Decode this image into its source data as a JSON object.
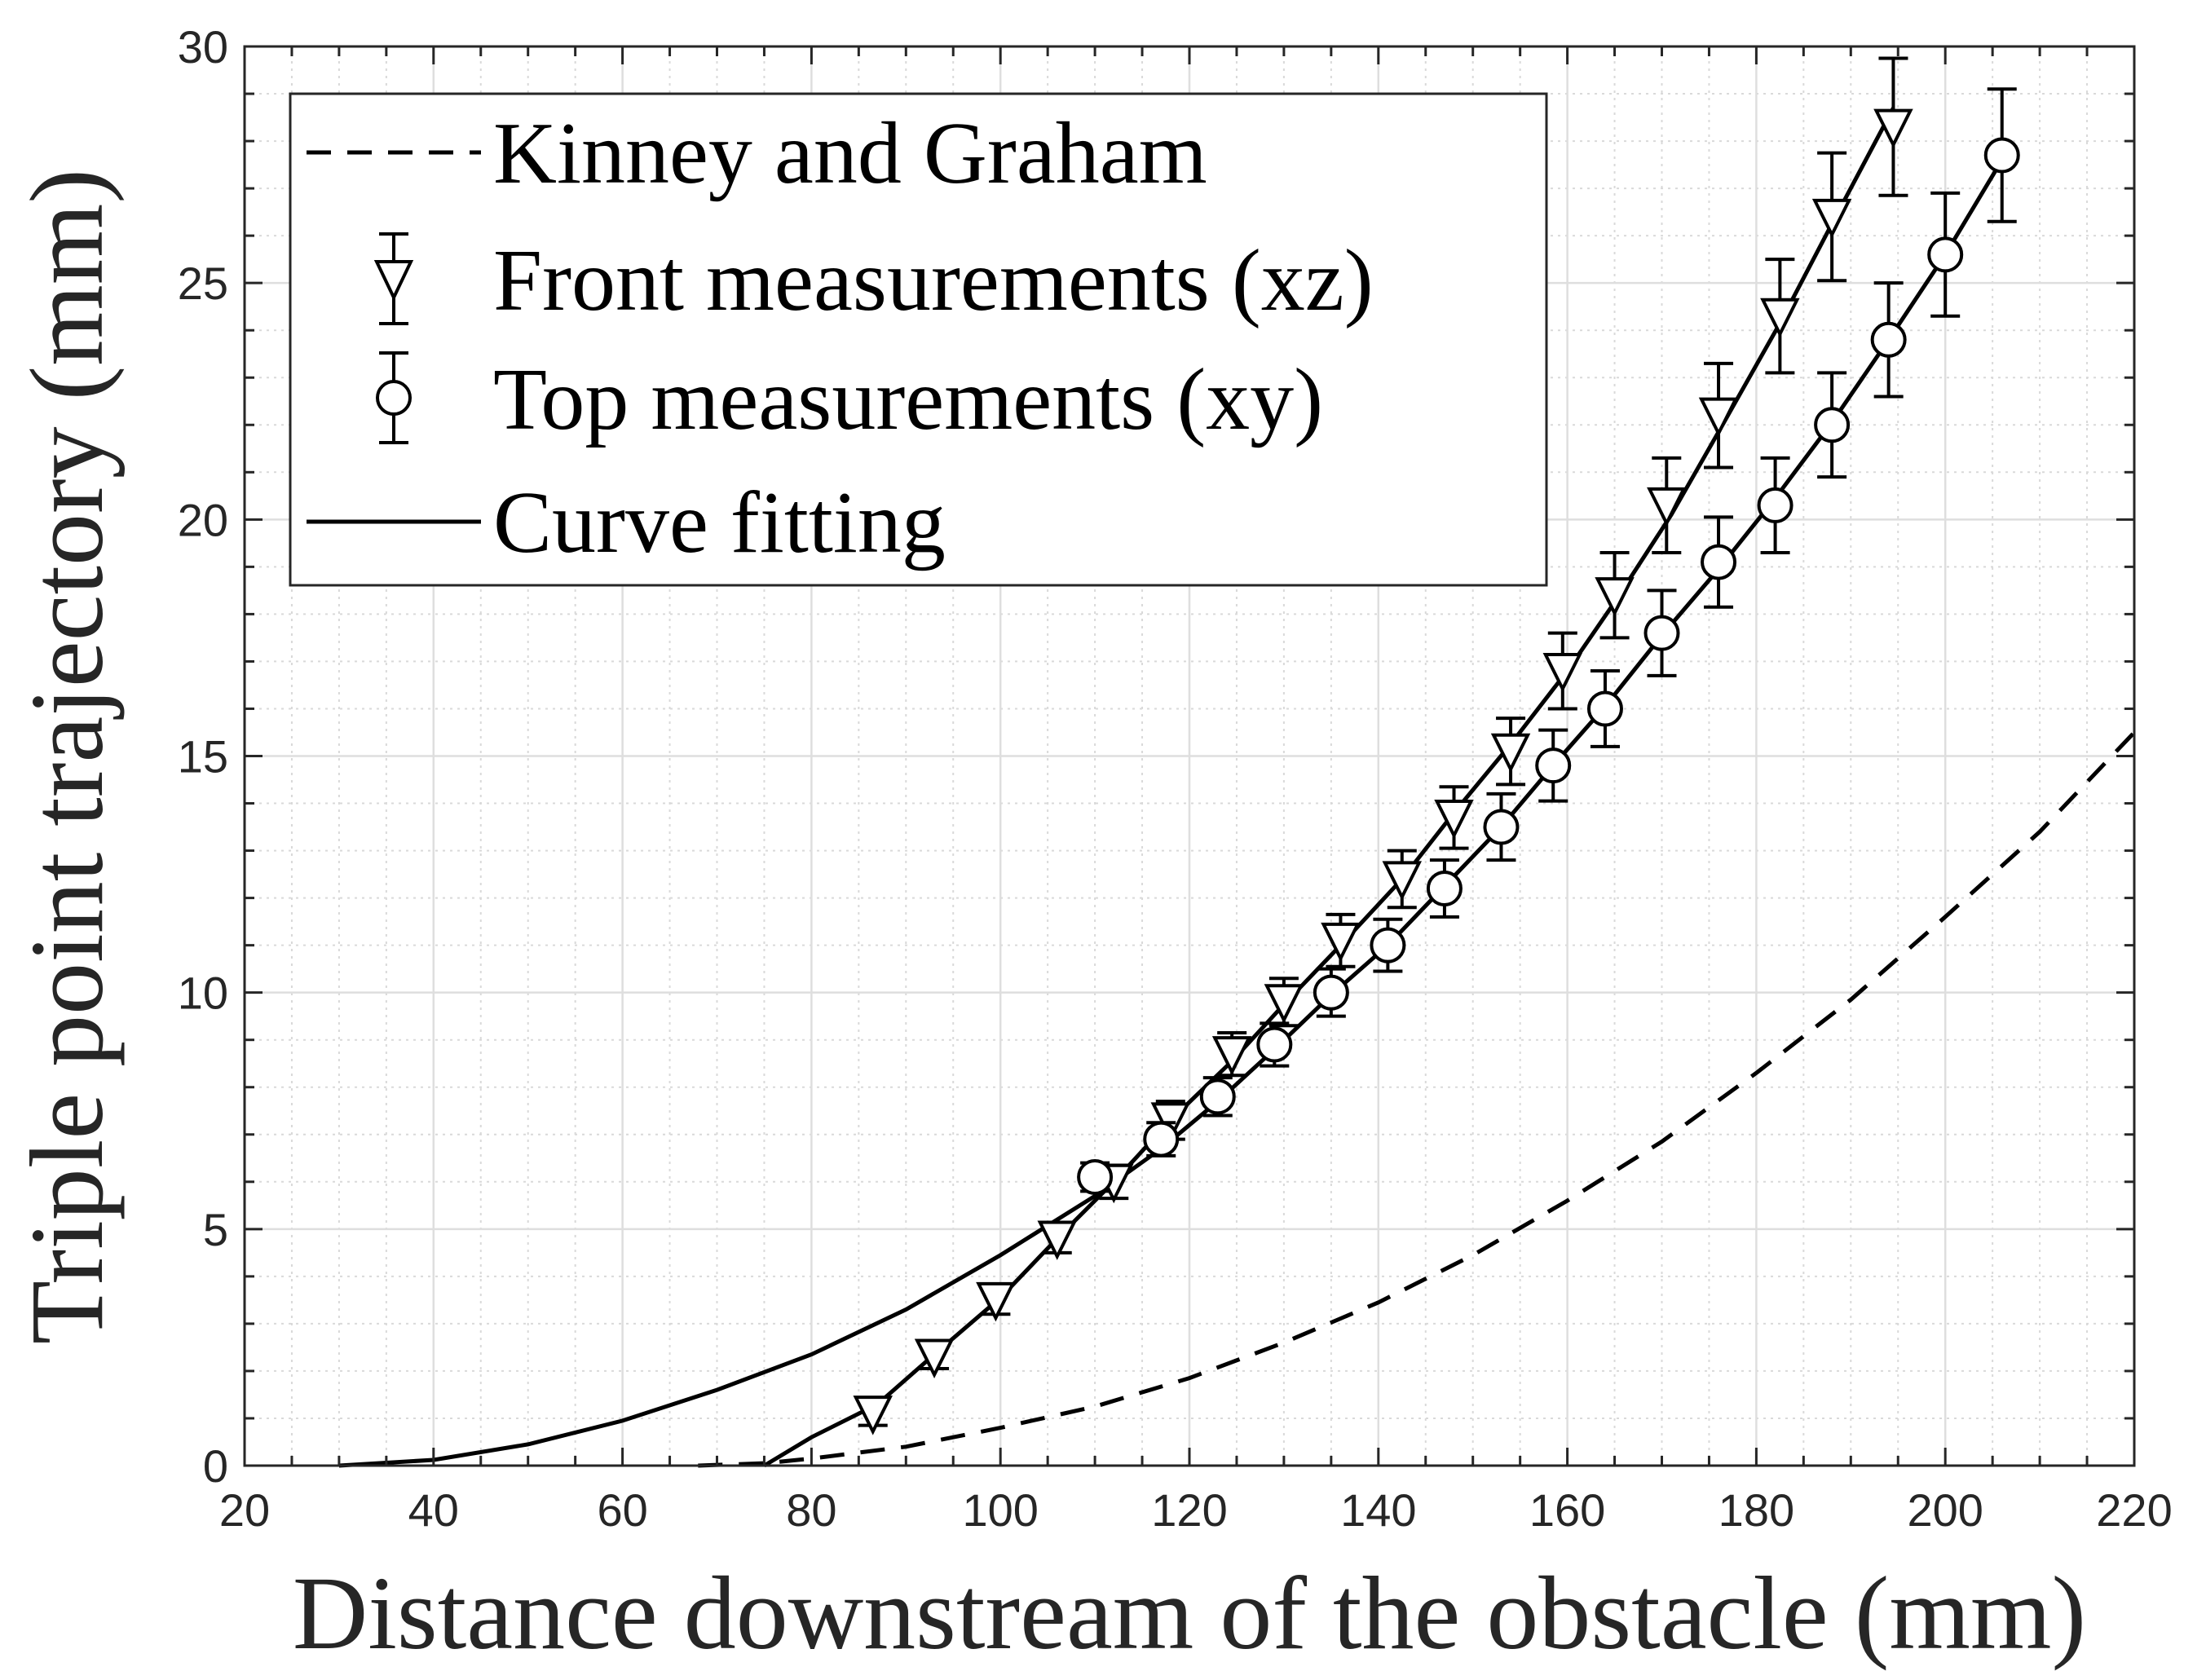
{
  "chart_data": {
    "type": "scatter",
    "xlabel": "Distance downstream of the obstacle (mm)",
    "ylabel": "Triple point trajectory (mm)",
    "xlim": [
      20,
      220
    ],
    "ylim": [
      0,
      30
    ],
    "x_ticks": [
      "20",
      "40",
      "60",
      "80",
      "100",
      "120",
      "140",
      "160",
      "180",
      "200",
      "220"
    ],
    "y_ticks": [
      "0",
      "5",
      "10",
      "15",
      "20",
      "25",
      "30"
    ],
    "grid": "major and minor",
    "legend_position": "top-left",
    "series": [
      {
        "name": "Kinney and Graham",
        "style": "dashed-line",
        "color": "#000000",
        "x": [
          68,
          75,
          80,
          90,
          100,
          110,
          120,
          130,
          140,
          150,
          160,
          170,
          180,
          190,
          200,
          210,
          220
        ],
        "y": [
          0,
          0.05,
          0.15,
          0.4,
          0.8,
          1.25,
          1.85,
          2.6,
          3.45,
          4.45,
          5.6,
          6.85,
          8.3,
          9.85,
          11.6,
          13.4,
          15.5
        ]
      },
      {
        "name": "Front measurements (xz)",
        "style": "triangle-down-markers-with-errorbars",
        "color": "#000000",
        "x": [
          86.5,
          93,
          99.5,
          106,
          112,
          118,
          124.5,
          130,
          136,
          142.5,
          148,
          154,
          159.5,
          165,
          170.5,
          176,
          182.5,
          188,
          194.5
        ],
        "y": [
          1.1,
          2.3,
          3.5,
          4.8,
          6.0,
          7.3,
          8.7,
          9.8,
          11.1,
          12.4,
          13.7,
          15.1,
          16.8,
          18.4,
          20.3,
          22.2,
          24.3,
          26.4,
          28.3
        ],
        "yerr": [
          0.25,
          0.25,
          0.3,
          0.3,
          0.35,
          0.4,
          0.45,
          0.5,
          0.55,
          0.6,
          0.65,
          0.7,
          0.8,
          0.9,
          1.0,
          1.1,
          1.2,
          1.35,
          1.45
        ]
      },
      {
        "name": "Top measurements (xy)",
        "style": "circle-markers-with-errorbars",
        "color": "#000000",
        "x": [
          110,
          117,
          123,
          129,
          135,
          141,
          147,
          153,
          158.5,
          164,
          170,
          176,
          182,
          188,
          194,
          200,
          206
        ],
        "y": [
          6.1,
          6.9,
          7.8,
          8.9,
          10.0,
          11.0,
          12.2,
          13.5,
          14.8,
          16.0,
          17.6,
          19.1,
          20.3,
          22.0,
          23.8,
          25.6,
          27.7
        ],
        "yerr": [
          0.3,
          0.35,
          0.4,
          0.45,
          0.5,
          0.55,
          0.6,
          0.7,
          0.75,
          0.8,
          0.9,
          0.95,
          1.0,
          1.1,
          1.2,
          1.3,
          1.4
        ]
      },
      {
        "name": "Curve fitting",
        "style": "solid-line",
        "color": "#000000",
        "curves": [
          {
            "label": "fit-front",
            "x": [
              75,
              80,
              87,
              93,
              100,
              106,
              112,
              118,
              124.5,
              130,
              136,
              142.5,
              148,
              154,
              160,
              165,
              171,
              176,
              182.5,
              188,
              194.5
            ],
            "y": [
              0,
              0.6,
              1.3,
              2.35,
              3.55,
              4.8,
              6.0,
              7.3,
              8.55,
              9.75,
              11.0,
              12.4,
              13.8,
              15.25,
              16.8,
              18.25,
              20.1,
              21.85,
              24.15,
              26.25,
              28.7
            ]
          },
          {
            "label": "fit-top",
            "x": [
              30,
              40,
              50,
              60,
              70,
              80,
              90,
              100,
              110,
              117,
              123,
              129,
              135,
              141,
              147,
              153,
              158.5,
              164,
              170,
              176,
              182,
              188,
              194,
              200,
              206
            ],
            "y": [
              0,
              0.12,
              0.45,
              0.95,
              1.6,
              2.35,
              3.3,
              4.45,
              5.7,
              6.7,
              7.7,
              8.8,
              9.95,
              11.0,
              12.25,
              13.5,
              14.8,
              16.05,
              17.55,
              18.95,
              20.45,
              22.05,
              23.8,
              25.6,
              27.6
            ]
          }
        ]
      }
    ]
  }
}
